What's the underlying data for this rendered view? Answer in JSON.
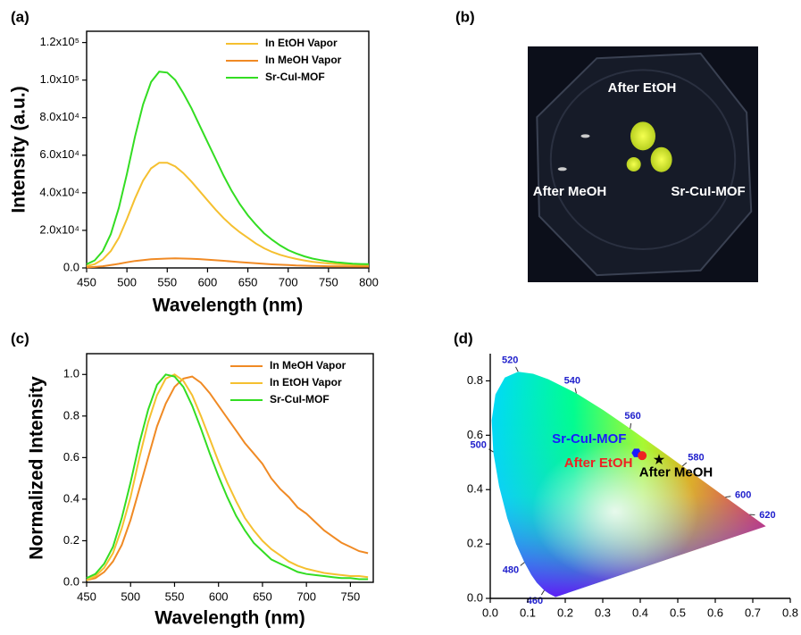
{
  "chart_data": [
    {
      "type": "line",
      "panel_label": "(a)",
      "x_label": "Wavelength (nm)",
      "y_label": "Intensity (a.u.)",
      "x": [
        450,
        460,
        470,
        480,
        490,
        500,
        510,
        520,
        530,
        540,
        550,
        560,
        570,
        580,
        590,
        600,
        610,
        620,
        630,
        640,
        650,
        660,
        670,
        680,
        690,
        700,
        710,
        720,
        730,
        740,
        750,
        760,
        770,
        780,
        790,
        800
      ],
      "series": [
        {
          "name": "In EtOH Vapor",
          "color": "#f5c030",
          "values": [
            1000,
            2000,
            4500,
            9000,
            16000,
            26000,
            37000,
            46500,
            53000,
            56000,
            56000,
            54000,
            50500,
            46000,
            41000,
            36000,
            31000,
            26500,
            22500,
            19000,
            16000,
            13000,
            10500,
            8500,
            7000,
            5800,
            4800,
            4000,
            3300,
            2800,
            2400,
            2100,
            1900,
            1700,
            1600,
            1500
          ]
        },
        {
          "name": "In MeOH Vapor",
          "color": "#f08a24",
          "values": [
            300,
            500,
            900,
            1500,
            2200,
            3000,
            3700,
            4200,
            4600,
            4800,
            5000,
            5100,
            5000,
            4900,
            4700,
            4400,
            4100,
            3800,
            3400,
            3100,
            2800,
            2500,
            2200,
            1900,
            1700,
            1500,
            1300,
            1200,
            1100,
            1000,
            900,
            850,
            800,
            750,
            700,
            700
          ]
        },
        {
          "name": "Sr-CuI-MOF",
          "color": "#33dd22",
          "values": [
            2000,
            4000,
            9000,
            18000,
            32000,
            50000,
            70000,
            87000,
            99000,
            104500,
            104000,
            100000,
            93000,
            85000,
            76000,
            67000,
            58000,
            49000,
            41000,
            34000,
            28000,
            23000,
            18500,
            15000,
            12000,
            9500,
            7700,
            6200,
            5000,
            4200,
            3500,
            3000,
            2600,
            2300,
            2100,
            2000
          ]
        }
      ],
      "xlim": [
        450,
        800
      ],
      "xticks": [
        450,
        500,
        550,
        600,
        650,
        700,
        750,
        800
      ],
      "ylim": [
        0,
        126000
      ],
      "yticks": [
        {
          "value": 0,
          "label": "0.0"
        },
        {
          "value": 20000,
          "label": "2.0x10⁴"
        },
        {
          "value": 40000,
          "label": "4.0x10⁴"
        },
        {
          "value": 60000,
          "label": "6.0x10⁴"
        },
        {
          "value": 80000,
          "label": "8.0x10⁴"
        },
        {
          "value": 100000,
          "label": "1.0x10⁵"
        },
        {
          "value": 120000,
          "label": "1.2x10⁵"
        }
      ],
      "legend": "upper right"
    },
    {
      "type": "image",
      "panel_label": "(b)",
      "labels": [
        "After EtOH",
        "After MeOH",
        "Sr-CuI-MOF"
      ]
    },
    {
      "type": "line",
      "panel_label": "(c)",
      "x_label": "Wavelength (nm)",
      "y_label": "Normalized Intensity",
      "x": [
        450,
        460,
        470,
        480,
        490,
        500,
        510,
        520,
        530,
        540,
        550,
        560,
        570,
        580,
        590,
        600,
        610,
        620,
        630,
        640,
        650,
        660,
        670,
        680,
        690,
        700,
        710,
        720,
        730,
        740,
        750,
        760,
        770
      ],
      "series": [
        {
          "name": "In MeOH Vapor",
          "color": "#f08a24",
          "values": [
            0.01,
            0.02,
            0.05,
            0.1,
            0.18,
            0.3,
            0.45,
            0.6,
            0.75,
            0.86,
            0.94,
            0.98,
            0.99,
            0.96,
            0.91,
            0.85,
            0.79,
            0.73,
            0.67,
            0.62,
            0.57,
            0.5,
            0.45,
            0.41,
            0.36,
            0.33,
            0.29,
            0.25,
            0.22,
            0.19,
            0.17,
            0.15,
            0.14
          ]
        },
        {
          "name": "In EtOH Vapor",
          "color": "#f5c030",
          "values": [
            0.01,
            0.03,
            0.07,
            0.14,
            0.26,
            0.41,
            0.6,
            0.77,
            0.9,
            0.98,
            1.0,
            0.97,
            0.9,
            0.8,
            0.69,
            0.58,
            0.48,
            0.39,
            0.31,
            0.25,
            0.2,
            0.16,
            0.13,
            0.1,
            0.08,
            0.065,
            0.055,
            0.045,
            0.04,
            0.035,
            0.03,
            0.03,
            0.025
          ]
        },
        {
          "name": "Sr-CuI-MOF",
          "color": "#33dd22",
          "values": [
            0.02,
            0.04,
            0.09,
            0.17,
            0.31,
            0.48,
            0.67,
            0.83,
            0.95,
            1.0,
            0.99,
            0.94,
            0.85,
            0.74,
            0.62,
            0.51,
            0.41,
            0.32,
            0.25,
            0.19,
            0.15,
            0.11,
            0.09,
            0.07,
            0.05,
            0.04,
            0.035,
            0.03,
            0.025,
            0.02,
            0.02,
            0.015,
            0.015
          ]
        }
      ],
      "xlim": [
        450,
        776
      ],
      "xticks": [
        450,
        500,
        550,
        600,
        650,
        700,
        750
      ],
      "ylim": [
        0,
        1.1
      ],
      "yticks": [
        {
          "value": 0,
          "label": "0.0"
        },
        0.2,
        0.4,
        0.6,
        0.8,
        {
          "value": 1,
          "label": "1.0"
        }
      ],
      "legend": "upper right"
    },
    {
      "type": "scatter",
      "panel_label": "(d)",
      "locus": {
        "labels": [
          460,
          480,
          500,
          520,
          540,
          560,
          580,
          600,
          620
        ],
        "x": [
          0.144,
          0.0913,
          0.0082,
          0.0743,
          0.2296,
          0.3731,
          0.5125,
          0.627,
          0.6915
        ],
        "y": [
          0.0297,
          0.1327,
          0.5384,
          0.8338,
          0.7543,
          0.6245,
          0.4866,
          0.3725,
          0.3083
        ]
      },
      "series": [
        {
          "name": "Sr-CuI-MOF",
          "color": "#1a1aff",
          "marker": "hexagon",
          "x": [
            0.39
          ],
          "values": [
            0.535
          ]
        },
        {
          "name": "After EtOH",
          "color": "#ee2222",
          "marker": "circle",
          "x": [
            0.405
          ],
          "values": [
            0.525
          ]
        },
        {
          "name": "After MeOH",
          "color": "#000000",
          "marker": "star",
          "x": [
            0.45
          ],
          "values": [
            0.51
          ]
        }
      ],
      "xlim": [
        0,
        0.8
      ],
      "xticks": [
        {
          "value": 0,
          "label": "0.0"
        },
        0.1,
        0.2,
        0.3,
        0.4,
        0.5,
        0.6,
        0.7,
        0.8
      ],
      "ylim": [
        0,
        0.9
      ],
      "yticks": [
        {
          "value": 0,
          "label": "0.0"
        },
        0.2,
        0.4,
        0.6,
        0.8
      ]
    }
  ]
}
